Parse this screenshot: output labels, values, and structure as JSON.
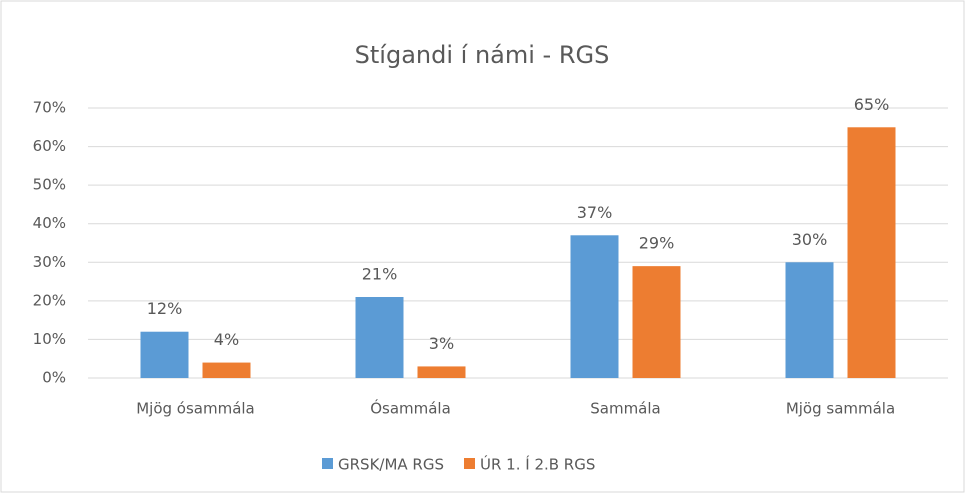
{
  "chart_data": {
    "type": "bar",
    "title": "Stígandi í námi - RGS",
    "categories": [
      "Mjög ósammála",
      "Ósammála",
      "Sammála",
      "Mjög sammála"
    ],
    "series": [
      {
        "name": "GRSK/MA RGS",
        "color": "#5b9bd5",
        "values": [
          12,
          21,
          37,
          30
        ],
        "value_labels": [
          "12%",
          "21%",
          "37%",
          "30%"
        ]
      },
      {
        "name": "ÚR 1. Í 2.B RGS",
        "color": "#ed7d31",
        "values": [
          4,
          3,
          29,
          65
        ],
        "value_labels": [
          "4%",
          "3%",
          "29%",
          "65%"
        ]
      }
    ],
    "ylim": [
      0,
      70
    ],
    "yticks": [
      {
        "value": 0,
        "label": "0%"
      },
      {
        "value": 10,
        "label": "10%"
      },
      {
        "value": 20,
        "label": "20%"
      },
      {
        "value": 30,
        "label": "30%"
      },
      {
        "value": 40,
        "label": "40%"
      },
      {
        "value": 50,
        "label": "50%"
      },
      {
        "value": 60,
        "label": "60%"
      },
      {
        "value": 70,
        "label": "70%"
      }
    ],
    "grid": true,
    "legend": "bottom"
  }
}
